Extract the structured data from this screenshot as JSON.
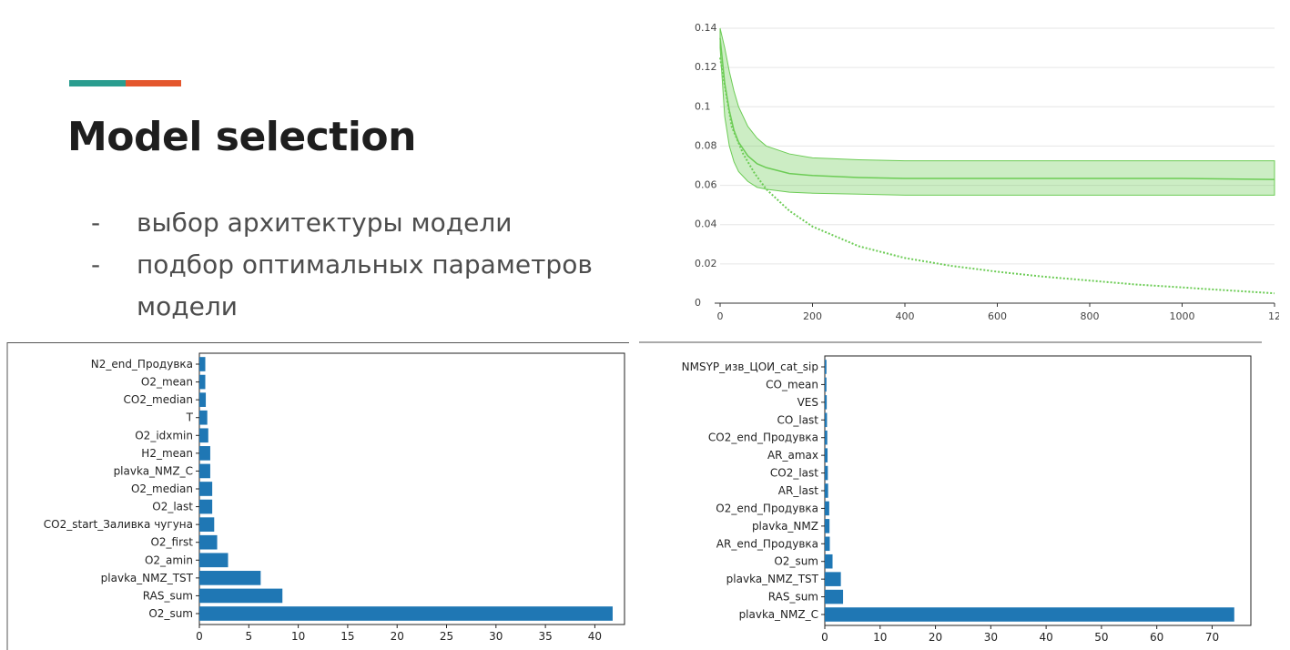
{
  "slide": {
    "title": "Model selection",
    "bullets": [
      {
        "dash": "-",
        "text": "выбор архитектуры модели"
      },
      {
        "dash": "-",
        "text": "подбор оптимальных параметров модели"
      }
    ],
    "accent_colors": {
      "teal": "#2a9d8f",
      "orange": "#e4572e"
    }
  },
  "chart_data": [
    {
      "type": "line",
      "title": "",
      "xlabel": "",
      "ylabel": "",
      "xlim": [
        0,
        1200
      ],
      "ylim": [
        0,
        0.14
      ],
      "x_ticks": [
        "0",
        "200",
        "400",
        "600",
        "800",
        "1000",
        "12"
      ],
      "y_ticks": [
        "0",
        "0.02",
        "0.04",
        "0.06",
        "0.08",
        "0.1",
        "0.12",
        "0.14"
      ],
      "grid": "horizontal",
      "color": "#6ccc55",
      "series": [
        {
          "style": "solid-with-band",
          "x": [
            0,
            10,
            20,
            30,
            40,
            60,
            80,
            100,
            150,
            200,
            300,
            400,
            600,
            800,
            1000,
            1200
          ],
          "y": [
            0.135,
            0.112,
            0.098,
            0.088,
            0.082,
            0.075,
            0.071,
            0.069,
            0.066,
            0.065,
            0.064,
            0.0635,
            0.0635,
            0.0635,
            0.0635,
            0.063
          ],
          "band_upper": [
            0.14,
            0.13,
            0.118,
            0.108,
            0.1,
            0.09,
            0.084,
            0.08,
            0.076,
            0.074,
            0.073,
            0.0725,
            0.0725,
            0.0725,
            0.0725,
            0.0725
          ],
          "band_lower": [
            0.13,
            0.095,
            0.08,
            0.072,
            0.067,
            0.062,
            0.059,
            0.058,
            0.0565,
            0.056,
            0.0555,
            0.055,
            0.055,
            0.055,
            0.055,
            0.055
          ]
        },
        {
          "style": "dashed",
          "x": [
            0,
            25,
            50,
            75,
            100,
            150,
            200,
            300,
            400,
            500,
            600,
            700,
            800,
            900,
            1000,
            1100,
            1200
          ],
          "y": [
            0.125,
            0.09,
            0.076,
            0.066,
            0.058,
            0.047,
            0.039,
            0.029,
            0.023,
            0.019,
            0.016,
            0.0135,
            0.0115,
            0.0095,
            0.008,
            0.0065,
            0.005
          ]
        }
      ]
    },
    {
      "type": "bar",
      "orientation": "horizontal",
      "color": "#1f77b4",
      "categories": [
        "N2_end_Продувка",
        "O2_mean",
        "CO2_median",
        "T",
        "O2_idxmin",
        "H2_mean",
        "plavka_NMZ_C",
        "O2_median",
        "O2_last",
        "CO2_start_Заливка чугуна",
        "O2_first",
        "O2_amin",
        "plavka_NMZ_TST",
        "RAS_sum",
        "O2_sum"
      ],
      "values": [
        0.6,
        0.6,
        0.65,
        0.8,
        0.9,
        1.1,
        1.1,
        1.3,
        1.3,
        1.5,
        1.8,
        2.9,
        6.2,
        8.4,
        41.8
      ],
      "xlim": [
        0,
        43
      ],
      "x_ticks": [
        0,
        5,
        10,
        15,
        20,
        25,
        30,
        35,
        40
      ]
    },
    {
      "type": "bar",
      "orientation": "horizontal",
      "color": "#1f77b4",
      "categories": [
        "NMSYP_изв_ЦОИ_cat_sip",
        "CO_mean",
        "VES",
        "CO_last",
        "CO2_end_Продувка",
        "AR_amax",
        "CO2_last",
        "AR_last",
        "O2_end_Продувка",
        "plavka_NMZ",
        "AR_end_Продувка",
        "O2_sum",
        "plavka_NMZ_TST",
        "RAS_sum",
        "plavka_NMZ_C"
      ],
      "values": [
        0.3,
        0.3,
        0.35,
        0.4,
        0.45,
        0.5,
        0.55,
        0.6,
        0.8,
        0.85,
        0.9,
        1.4,
        2.9,
        3.3,
        74
      ],
      "xlim": [
        0,
        77
      ],
      "x_ticks": [
        0,
        10,
        20,
        30,
        40,
        50,
        60,
        70
      ]
    }
  ]
}
